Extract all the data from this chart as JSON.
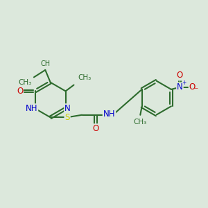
{
  "bg_color": "#dce8dc",
  "bond_color": "#2d6b2d",
  "bond_width": 1.5,
  "atom_colors": {
    "N": "#0000cc",
    "O": "#cc0000",
    "S": "#cccc00",
    "H": "#888888",
    "C": "#2d6b2d"
  },
  "font_size": 8.5,
  "fig_size": [
    3.0,
    3.0
  ],
  "dpi": 100,
  "xlim": [
    0,
    10
  ],
  "ylim": [
    0,
    10
  ]
}
